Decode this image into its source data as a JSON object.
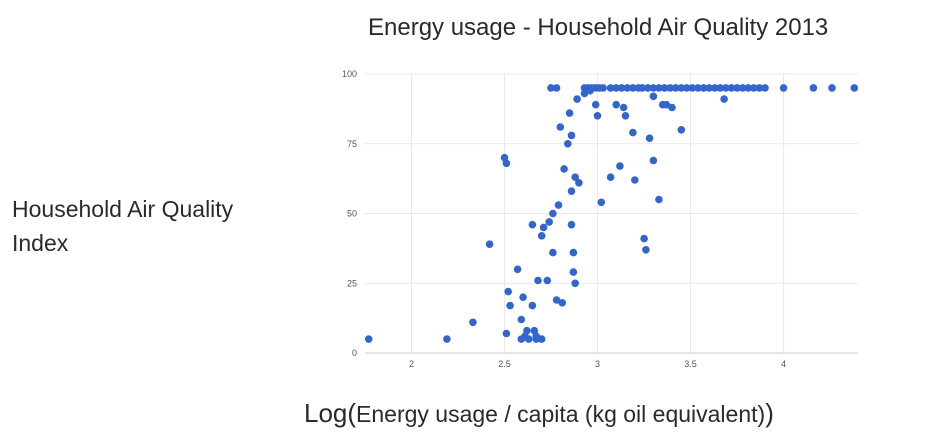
{
  "chart_data": {
    "type": "scatter",
    "title": "Energy usage - Household Air Quality 2013",
    "ylabel_lines": [
      "Household Air Quality",
      "Index"
    ],
    "xlabel_prefix": "Log(",
    "xlabel_inner": "Energy usage / capita (kg oil equivalent)",
    "xlabel_suffix": ")",
    "xlim": [
      1.75,
      4.4
    ],
    "ylim": [
      0,
      100
    ],
    "x_ticks": [
      "2",
      "2.5",
      "3",
      "3.5",
      "4"
    ],
    "x_tick_values": [
      2,
      2.5,
      3,
      3.5,
      4
    ],
    "y_ticks": [
      "0",
      "25",
      "50",
      "75",
      "100"
    ],
    "y_tick_values": [
      0,
      25,
      50,
      75,
      100
    ],
    "grid": true,
    "color": "#3366cc",
    "points": [
      [
        1.77,
        5
      ],
      [
        2.19,
        5
      ],
      [
        2.33,
        11
      ],
      [
        2.42,
        39
      ],
      [
        2.5,
        70
      ],
      [
        2.51,
        68
      ],
      [
        2.51,
        7
      ],
      [
        2.52,
        22
      ],
      [
        2.53,
        17
      ],
      [
        2.57,
        30
      ],
      [
        2.59,
        5
      ],
      [
        2.59,
        12
      ],
      [
        2.6,
        20
      ],
      [
        2.61,
        6
      ],
      [
        2.62,
        8
      ],
      [
        2.63,
        5
      ],
      [
        2.65,
        17
      ],
      [
        2.65,
        46
      ],
      [
        2.66,
        8
      ],
      [
        2.67,
        6
      ],
      [
        2.67,
        5
      ],
      [
        2.68,
        26
      ],
      [
        2.7,
        5
      ],
      [
        2.7,
        42
      ],
      [
        2.71,
        45
      ],
      [
        2.73,
        26
      ],
      [
        2.74,
        47
      ],
      [
        2.76,
        50
      ],
      [
        2.76,
        36
      ],
      [
        2.78,
        19
      ],
      [
        2.79,
        53
      ],
      [
        2.8,
        81
      ],
      [
        2.81,
        18
      ],
      [
        2.82,
        66
      ],
      [
        2.84,
        75
      ],
      [
        2.85,
        86
      ],
      [
        2.86,
        58
      ],
      [
        2.86,
        78
      ],
      [
        2.86,
        46
      ],
      [
        2.87,
        29
      ],
      [
        2.87,
        36
      ],
      [
        2.88,
        25
      ],
      [
        2.88,
        63
      ],
      [
        2.89,
        91
      ],
      [
        2.9,
        61
      ],
      [
        2.93,
        93
      ],
      [
        2.96,
        94
      ],
      [
        2.99,
        89
      ],
      [
        3.0,
        85
      ],
      [
        3.02,
        54
      ],
      [
        3.07,
        63
      ],
      [
        3.1,
        89
      ],
      [
        3.12,
        67
      ],
      [
        3.14,
        88
      ],
      [
        3.15,
        85
      ],
      [
        3.19,
        79
      ],
      [
        3.2,
        62
      ],
      [
        3.25,
        41
      ],
      [
        3.26,
        37
      ],
      [
        3.28,
        77
      ],
      [
        3.3,
        92
      ],
      [
        3.3,
        69
      ],
      [
        3.33,
        55
      ],
      [
        3.35,
        89
      ],
      [
        3.37,
        89
      ],
      [
        3.4,
        88
      ],
      [
        3.45,
        80
      ],
      [
        3.68,
        91
      ],
      [
        2.75,
        95
      ],
      [
        2.78,
        95
      ],
      [
        2.93,
        95
      ],
      [
        2.95,
        95
      ],
      [
        2.97,
        95
      ],
      [
        2.99,
        95
      ],
      [
        3.01,
        95
      ],
      [
        3.03,
        95
      ],
      [
        3.07,
        95
      ],
      [
        3.1,
        95
      ],
      [
        3.13,
        95
      ],
      [
        3.16,
        95
      ],
      [
        3.19,
        95
      ],
      [
        3.22,
        95
      ],
      [
        3.24,
        95
      ],
      [
        3.27,
        95
      ],
      [
        3.3,
        95
      ],
      [
        3.33,
        95
      ],
      [
        3.36,
        95
      ],
      [
        3.39,
        95
      ],
      [
        3.42,
        95
      ],
      [
        3.45,
        95
      ],
      [
        3.48,
        95
      ],
      [
        3.51,
        95
      ],
      [
        3.54,
        95
      ],
      [
        3.57,
        95
      ],
      [
        3.6,
        95
      ],
      [
        3.63,
        95
      ],
      [
        3.66,
        95
      ],
      [
        3.69,
        95
      ],
      [
        3.72,
        95
      ],
      [
        3.75,
        95
      ],
      [
        3.78,
        95
      ],
      [
        3.81,
        95
      ],
      [
        3.84,
        95
      ],
      [
        3.87,
        95
      ],
      [
        3.9,
        95
      ],
      [
        4.0,
        95
      ],
      [
        4.16,
        95
      ],
      [
        4.26,
        95
      ],
      [
        4.38,
        95
      ]
    ]
  }
}
